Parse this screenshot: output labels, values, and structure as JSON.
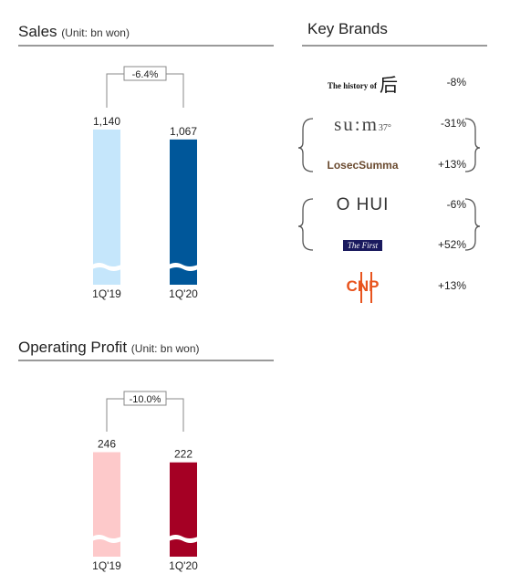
{
  "sales": {
    "title": "Sales",
    "unit": "(Unit: bn won)",
    "change_label": "-6.4%"
  },
  "operating_profit": {
    "title": "Operating Profit",
    "unit": "(Unit: bn won)",
    "change_label": "-10.0%"
  },
  "key_brands": {
    "title": "Key Brands",
    "brands": [
      {
        "name": "The history of 后",
        "change": "-8%"
      },
      {
        "name": "su:m37°",
        "change": "-31%"
      },
      {
        "name": "LosecSumma",
        "change": "+13%"
      },
      {
        "name": "O HUI",
        "change": "-6%"
      },
      {
        "name": "The First",
        "change": "+52%"
      },
      {
        "name": "CNP",
        "change": "+13%"
      }
    ]
  },
  "chart_data": [
    {
      "type": "bar",
      "title": "Sales",
      "categories": [
        "1Q'19",
        "1Q'20"
      ],
      "values": [
        1140,
        1067
      ],
      "value_labels": [
        "1,140",
        "1,067"
      ],
      "colors": [
        "#c5e6fb",
        "#00579a"
      ],
      "change_label": "-6.4%",
      "axis_break": true,
      "ylim": [
        0,
        1200
      ]
    },
    {
      "type": "bar",
      "title": "Operating Profit",
      "categories": [
        "1Q'19",
        "1Q'20"
      ],
      "values": [
        246,
        222
      ],
      "value_labels": [
        "246",
        "222"
      ],
      "colors": [
        "#fdc9ca",
        "#a50024"
      ],
      "change_label": "-10.0%",
      "axis_break": true,
      "ylim": [
        0,
        260
      ]
    }
  ]
}
